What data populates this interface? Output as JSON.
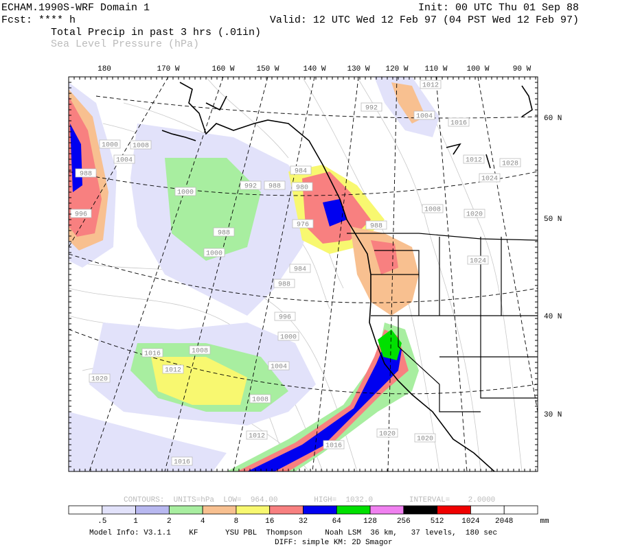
{
  "header": {
    "title": "ECHAM.1990S-WRF Domain 1",
    "init": "Init: 00 UTC Thu 01 Sep 88",
    "fcst": "Fcst: **** h",
    "valid": "Valid: 12 UTC Wed 12 Feb 97 (04 PST Wed 12 Feb 97)",
    "field1": "Total Precip in past 3 hrs (.01in)",
    "field2": "Sea Level Pressure (hPa)"
  },
  "map": {
    "lon_labels": [
      "180",
      "170 W",
      "160 W",
      "150 W",
      "140 W",
      "130 W",
      "120 W",
      "110 W",
      "100 W",
      "90 W"
    ],
    "lat_labels": [
      "60 N",
      "50 N",
      "40 N",
      "30 N"
    ],
    "contour_labels": [
      "1012",
      "992",
      "1004",
      "1016",
      "1000",
      "1008",
      "1004",
      "1012",
      "1028",
      "1024",
      "984",
      "992",
      "988",
      "980",
      "988",
      "1000",
      "996",
      "1008",
      "1020",
      "976",
      "988",
      "988",
      "1000",
      "1024",
      "984",
      "988",
      "996",
      "1000",
      "1016",
      "1008",
      "1012",
      "1004",
      "1020",
      "1008",
      "1012",
      "1016",
      "1020",
      "1020",
      "1016"
    ]
  },
  "legend": {
    "contours": "CONTOURS:  UNITS=hPa  LOW=  964.00        HIGH=  1032.0        INTERVAL=    2.0000",
    "colors": [
      "#ffffff",
      "#e2e2fa",
      "#b8b8f0",
      "#a8eea0",
      "#f8c090",
      "#f8f870",
      "#f88080",
      "#0000f0",
      "#00e000",
      "#f080f0",
      "#000000",
      "#f00000",
      "#ffffff",
      "#ffffff"
    ],
    "labels": [
      ".5",
      "1",
      "2",
      "4",
      "8",
      "16",
      "32",
      "64",
      "128",
      "256",
      "512",
      "1024",
      "2048",
      "mm"
    ]
  },
  "footer": {
    "model_info": "Model Info: V3.1.1    KF      YSU PBL  Thompson     Noah LSM  36 km,   37 levels,  180 sec",
    "diff": "DIFF: simple KM: 2D Smagor"
  }
}
